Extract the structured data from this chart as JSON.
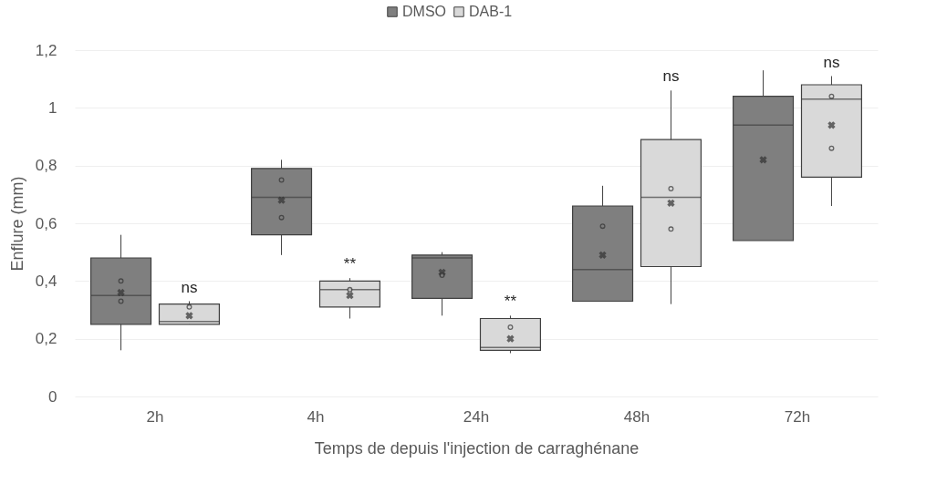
{
  "chart_data": {
    "type": "box",
    "xlabel": "Temps de depuis l'injection de carraghénane",
    "ylabel": "Enflure (mm)",
    "categories": [
      "2h",
      "4h",
      "24h",
      "48h",
      "72h"
    ],
    "ylim": [
      0,
      1.2
    ],
    "yticks": [
      0,
      {
        "value": 0.2,
        "label": "0,2"
      },
      {
        "value": 0.4,
        "label": "0,4"
      },
      {
        "value": 0.6,
        "label": "0,6"
      },
      {
        "value": 0.8,
        "label": "0,8"
      },
      1,
      {
        "value": 1.2,
        "label": "1,2"
      }
    ],
    "grid": "y",
    "legend": "top",
    "series": [
      {
        "name": "DMSO",
        "color": "#7f7f7f",
        "boxes": [
          {
            "low": 0.16,
            "q1": 0.25,
            "median": 0.35,
            "q3": 0.48,
            "high": 0.56,
            "mean": 0.36,
            "outliers": [
              0.4,
              0.33
            ]
          },
          {
            "low": 0.49,
            "q1": 0.56,
            "median": 0.69,
            "q3": 0.79,
            "high": 0.82,
            "mean": 0.68,
            "outliers": [
              0.75,
              0.62
            ]
          },
          {
            "low": 0.28,
            "q1": 0.34,
            "median": 0.48,
            "q3": 0.49,
            "high": 0.5,
            "mean": 0.43,
            "outliers": [
              0.42
            ]
          },
          {
            "low": 0.33,
            "q1": 0.33,
            "median": 0.44,
            "q3": 0.66,
            "high": 0.73,
            "mean": 0.49,
            "outliers": [
              0.59
            ]
          },
          {
            "low": 0.54,
            "q1": 0.54,
            "median": 0.94,
            "q3": 1.04,
            "high": 1.13,
            "mean": 0.82
          }
        ]
      },
      {
        "name": "DAB-1",
        "color": "#d9d9d9",
        "boxes": [
          {
            "low": 0.25,
            "q1": 0.25,
            "median": 0.26,
            "q3": 0.32,
            "high": 0.33,
            "mean": 0.28,
            "outliers": [
              0.31
            ]
          },
          {
            "low": 0.27,
            "q1": 0.31,
            "median": 0.37,
            "q3": 0.4,
            "high": 0.41,
            "mean": 0.35,
            "outliers": [
              0.37
            ]
          },
          {
            "low": 0.15,
            "q1": 0.16,
            "median": 0.17,
            "q3": 0.27,
            "high": 0.28,
            "mean": 0.2,
            "outliers": [
              0.24
            ]
          },
          {
            "low": 0.32,
            "q1": 0.45,
            "median": 0.69,
            "q3": 0.89,
            "high": 1.06,
            "mean": 0.67,
            "outliers": [
              0.72,
              0.58
            ]
          },
          {
            "low": 0.66,
            "q1": 0.76,
            "median": 1.03,
            "q3": 1.08,
            "high": 1.11,
            "mean": 0.94,
            "outliers": [
              1.04,
              0.86
            ]
          }
        ]
      }
    ],
    "annotations": [
      "ns",
      "**",
      "**",
      "ns",
      "ns"
    ]
  }
}
